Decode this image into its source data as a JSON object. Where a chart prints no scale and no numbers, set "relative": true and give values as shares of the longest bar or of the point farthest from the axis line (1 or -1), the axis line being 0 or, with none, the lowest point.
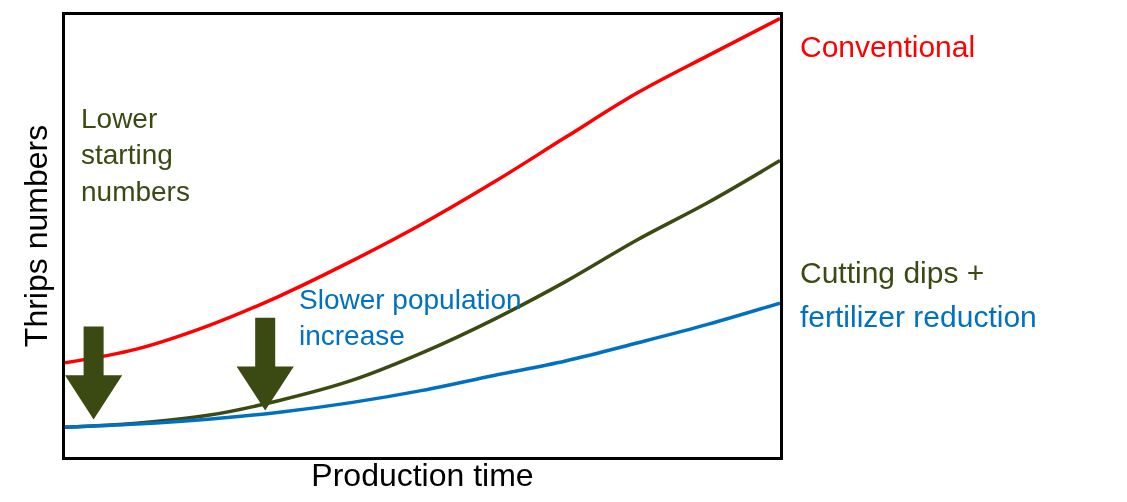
{
  "chart_data": {
    "type": "line",
    "relative": true,
    "xlabel": "Production time",
    "ylabel": "Thrips numbers",
    "categories": [
      null,
      null,
      null,
      null,
      null,
      null,
      null,
      null,
      null,
      null,
      null
    ],
    "series": [
      {
        "name": "Conventional",
        "color": "#ff0000",
        "values": [
          0.215,
          0.246,
          0.299,
          0.367,
          0.446,
          0.532,
          0.627,
          0.729,
          0.83,
          0.916,
          1.0
        ]
      },
      {
        "name": "Cutting dips +",
        "color": "#3a4a12",
        "values": [
          0.068,
          0.077,
          0.095,
          0.129,
          0.174,
          0.238,
          0.314,
          0.4,
          0.495,
          0.581,
          0.676
        ]
      },
      {
        "name": "fertilizer reduction",
        "color": "#0070c0",
        "values": [
          0.068,
          0.075,
          0.086,
          0.102,
          0.124,
          0.152,
          0.186,
          0.219,
          0.26,
          0.303,
          0.351
        ]
      }
    ],
    "annotations": [
      "Lower starting numbers",
      "Slower population increase"
    ],
    "legend": false,
    "marker": "none",
    "line_style": "solid"
  }
}
